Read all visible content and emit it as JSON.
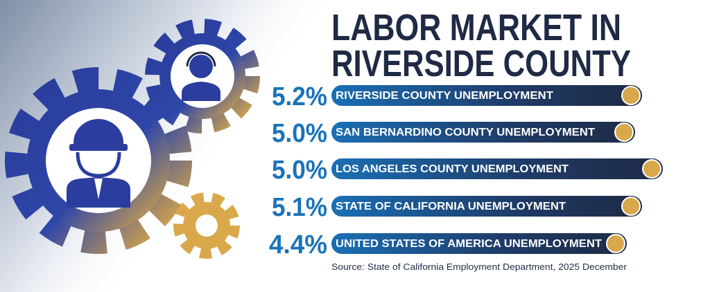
{
  "header": {
    "title_lines": [
      "LABOR MARKET IN",
      "RIVERSIDE COUNTY"
    ]
  },
  "items": [
    {
      "value": "5.2%",
      "label": "RIVERSIDE COUNTY UNEMPLOYMENT"
    },
    {
      "value": "5.0%",
      "label": "SAN BERNARDINO COUNTY UNEMPLOYMENT"
    },
    {
      "value": "5.0%",
      "label": "LOS ANGELES COUNTY UNEMPLOYMENT"
    },
    {
      "value": "5.1%",
      "label": "STATE OF CALIFORNIA UNEMPLOYMENT"
    },
    {
      "value": "4.4%",
      "label": "UNITED STATES OF AMERICA UNEMPLOYMENT"
    }
  ],
  "source": "Source: State of California Employment Department, 2025 December"
}
